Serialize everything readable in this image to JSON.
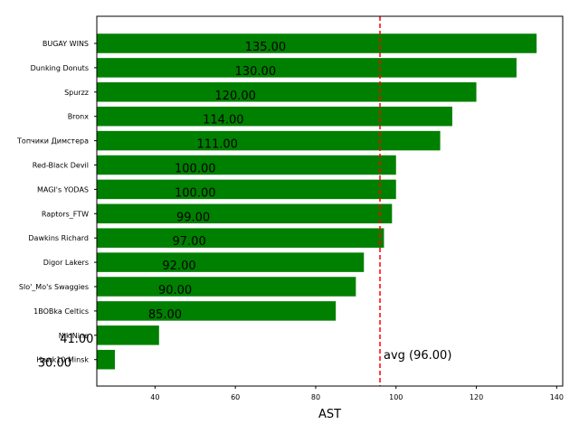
{
  "chart_data": {
    "type": "bar",
    "orientation": "horizontal",
    "title": "",
    "xlabel": "AST",
    "ylabel": "",
    "xlim": [
      25.5,
      141.5
    ],
    "xticks": [
      "40",
      "60",
      "80",
      "100",
      "120",
      "140"
    ],
    "categories": [
      "BUGAY WINS",
      "Dunking Donuts",
      "Spurzz",
      "Bronx",
      "Топчики Димстера",
      "Red-Black Devil",
      "MAGI's YODAS",
      "Raptors_FTW",
      "Dawkins Richard",
      "Digor Lakers",
      "Slo'_Mo's Swaggies",
      "1BOBka Celtics",
      "NikiNine",
      "Hawk10 Minsk"
    ],
    "values": [
      135,
      130,
      120,
      114,
      111,
      100,
      100,
      99,
      97,
      92,
      90,
      85,
      41,
      30
    ],
    "value_labels": [
      "135.00",
      "130.00",
      "120.00",
      "114.00",
      "111.00",
      "100.00",
      "100.00",
      "99.00",
      "97.00",
      "92.00",
      "90.00",
      "85.00",
      "41.00",
      "30.00"
    ],
    "bar_color": "#008000",
    "reference_line": {
      "value": 96,
      "label": "avg (96.00)",
      "color": "#ff0000",
      "style": "dashed"
    },
    "grid": false,
    "legend": "none"
  }
}
